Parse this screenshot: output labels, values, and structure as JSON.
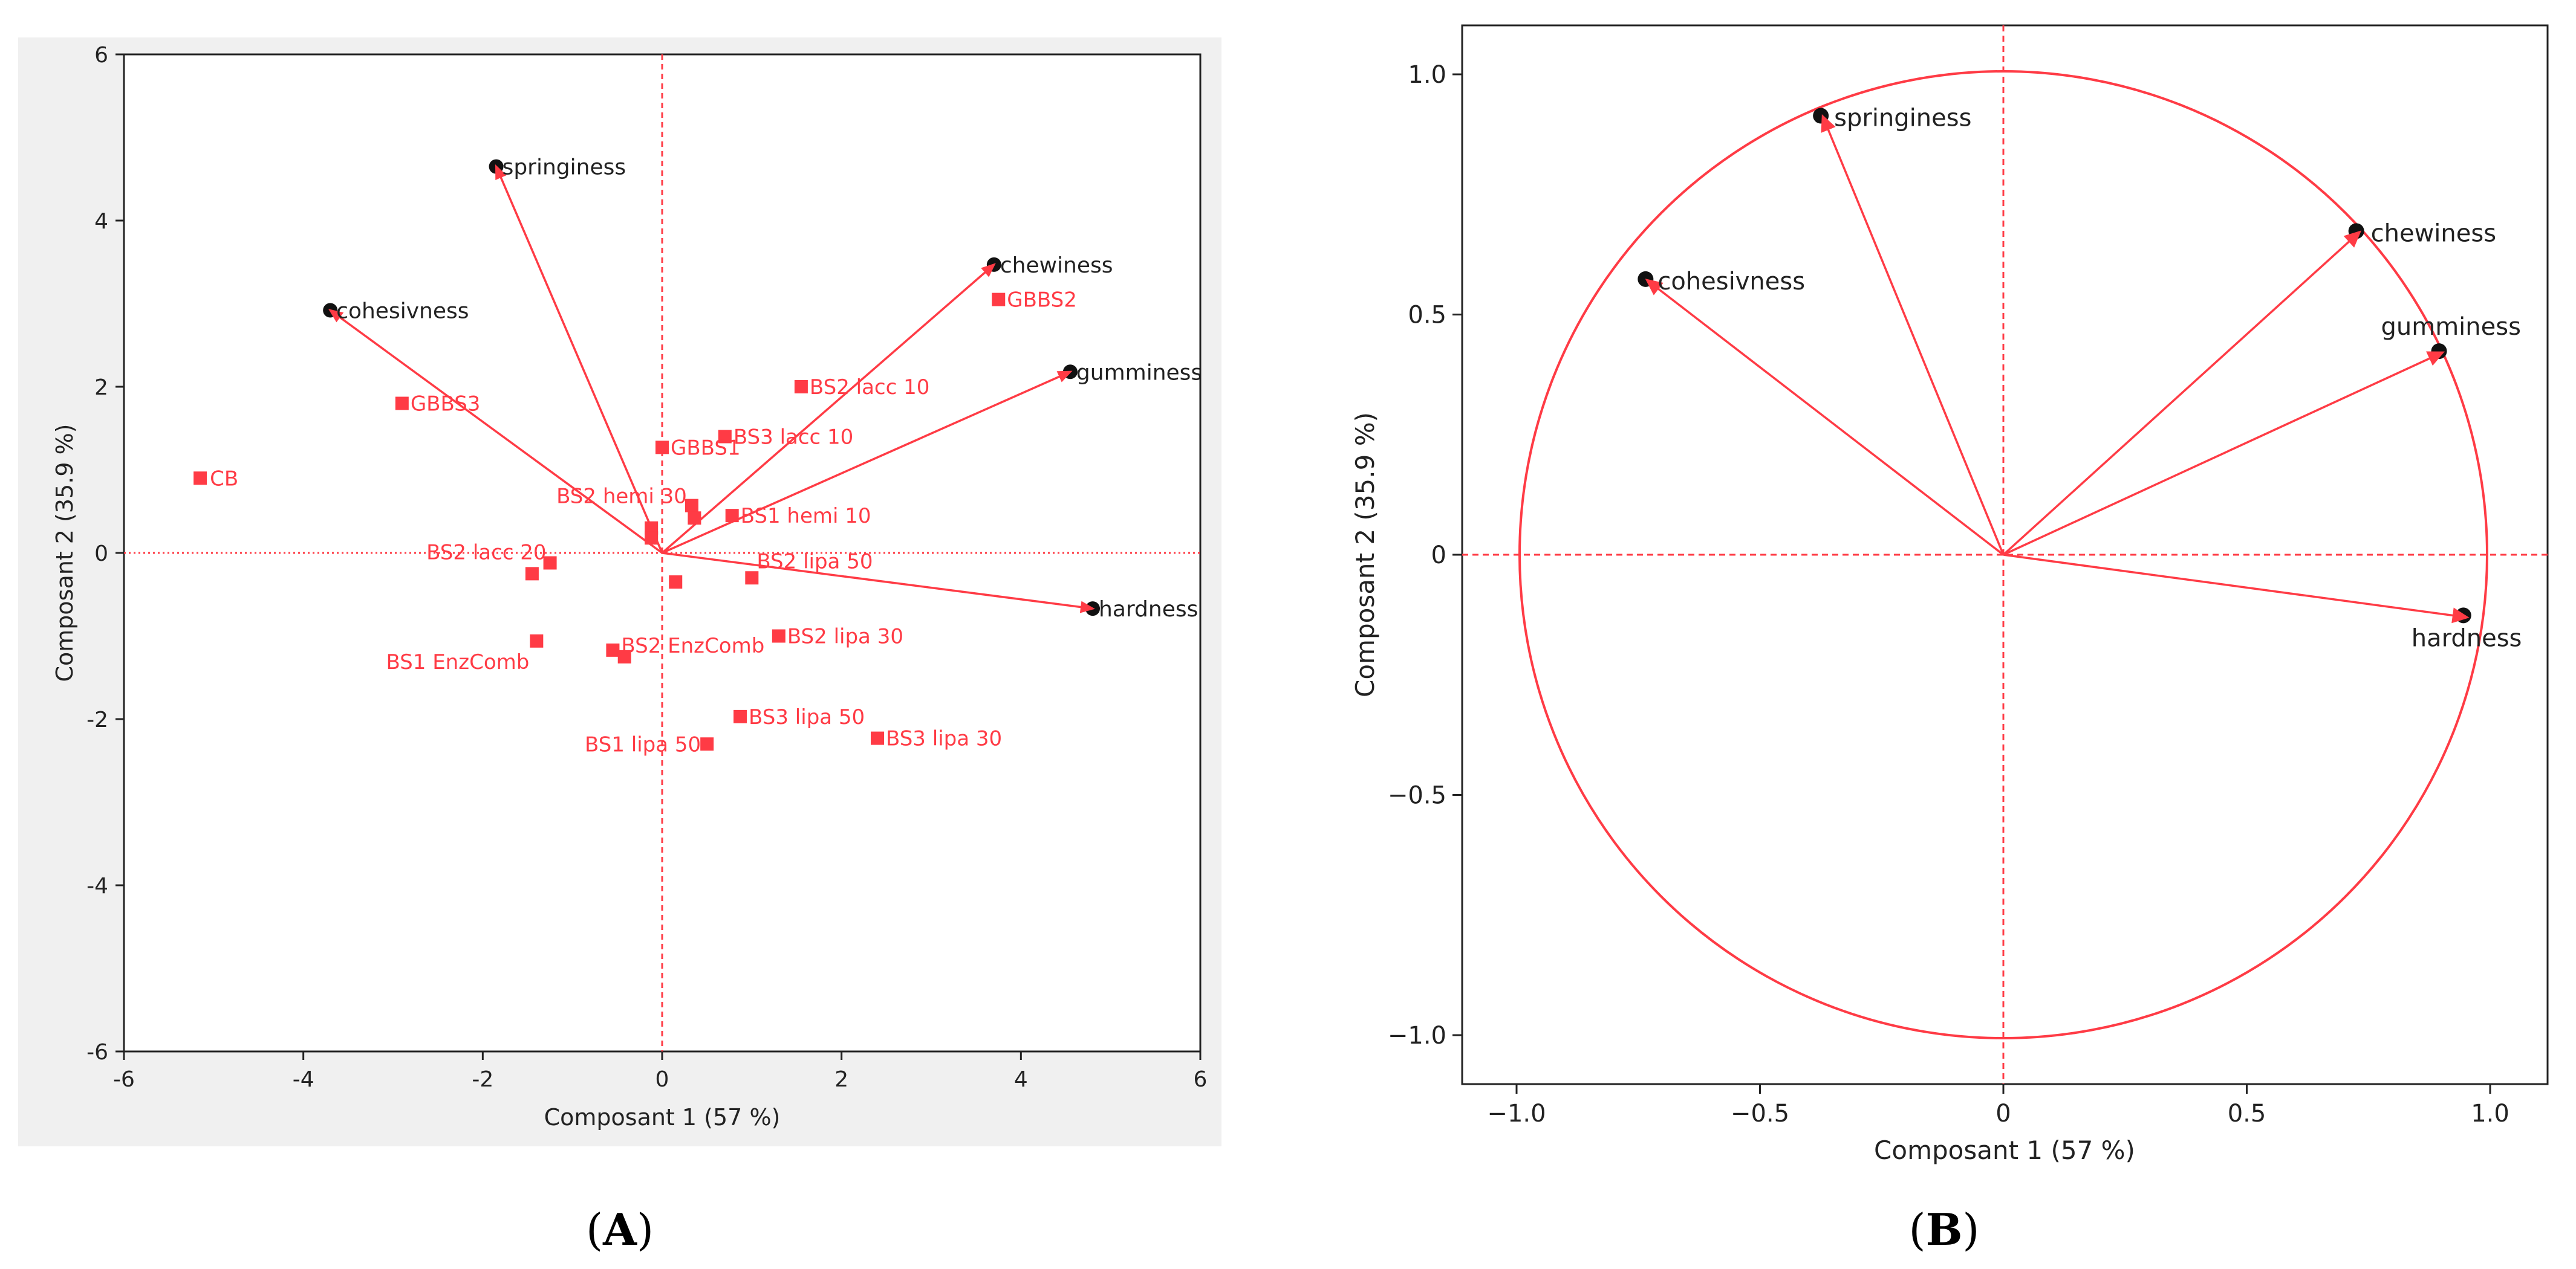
{
  "colors": {
    "accent": "#ff3b45",
    "axis": "#222222",
    "panel_bg": "#f0f0f0",
    "text_dark": "#222222",
    "point_outline": "#111111"
  },
  "panels": {
    "a": {
      "label": "A"
    },
    "b": {
      "label": "B"
    }
  },
  "chart_data": [
    {
      "panel": "A",
      "type": "scatter",
      "title": "",
      "xlabel": "Composant 1  (57 %)",
      "ylabel": "Composant 2  (35.9 %)",
      "xlim": [
        -6,
        6
      ],
      "ylim": [
        -6,
        6
      ],
      "xticks": [
        -6,
        -4,
        -2,
        0,
        2,
        4,
        6
      ],
      "yticks": [
        -6,
        -4,
        -2,
        0,
        2,
        4,
        6
      ],
      "loadings": [
        {
          "name": "springiness",
          "x": -1.85,
          "y": 4.65
        },
        {
          "name": "cohesivness",
          "x": -3.7,
          "y": 2.92
        },
        {
          "name": "chewiness",
          "x": 3.7,
          "y": 3.47
        },
        {
          "name": "gumminess",
          "x": 4.55,
          "y": 2.18
        },
        {
          "name": "hardness",
          "x": 4.8,
          "y": -0.67
        }
      ],
      "samples": [
        {
          "label": "CB",
          "x": -5.15,
          "y": 0.9
        },
        {
          "label": "GBBS3",
          "x": -2.9,
          "y": 1.8
        },
        {
          "label": "GBBS2",
          "x": 3.75,
          "y": 3.05
        },
        {
          "label": "BS2 lacc 10",
          "x": 1.55,
          "y": 2.0
        },
        {
          "label": "BS3 lacc 10",
          "x": 0.7,
          "y": 1.4
        },
        {
          "label": "GBBS1",
          "x": 0.0,
          "y": 1.27
        },
        {
          "label": "BS1 hemi 10",
          "x": 0.78,
          "y": 0.45
        },
        {
          "label": "BS2 hemi 30",
          "x": 0.33,
          "y": 0.57
        },
        {
          "label": "",
          "x": 0.36,
          "y": 0.42
        },
        {
          "label": "",
          "x": -0.12,
          "y": 0.3
        },
        {
          "label": "",
          "x": -0.12,
          "y": 0.18
        },
        {
          "label": "BS2 lipa 50",
          "x": 1.0,
          "y": -0.3
        },
        {
          "label": "",
          "x": 0.15,
          "y": -0.35
        },
        {
          "label": "BS2 lacc 20",
          "x": -1.25,
          "y": -0.12
        },
        {
          "label": "",
          "x": -1.45,
          "y": -0.25
        },
        {
          "label": "BS2 EnzComb",
          "x": -0.55,
          "y": -1.17
        },
        {
          "label": "",
          "x": -0.42,
          "y": -1.25
        },
        {
          "label": "BS1 EnzComb",
          "x": -1.4,
          "y": -1.06
        },
        {
          "label": "BS2 lipa 30",
          "x": 1.3,
          "y": -1.0
        },
        {
          "label": "BS3 lipa 50",
          "x": 0.87,
          "y": -1.97
        },
        {
          "label": "BS1 lipa 50",
          "x": 0.5,
          "y": -2.3
        },
        {
          "label": "BS3 lipa 30",
          "x": 2.4,
          "y": -2.23
        }
      ]
    },
    {
      "panel": "B",
      "type": "scatter",
      "title": "",
      "xlabel": "Composant 1  (57 %)",
      "ylabel": "Composant 2  (35.9 %)",
      "xlim": [
        -1.1,
        1.1
      ],
      "ylim": [
        -1.1,
        1.1
      ],
      "xticks": [
        -1.0,
        -0.5,
        0,
        0.5,
        1.0
      ],
      "yticks": [
        -1.0,
        -0.5,
        0,
        0.5,
        1.0
      ],
      "tick_labels": [
        "−1.0",
        "−0.5",
        "0",
        "0.5",
        "1.0"
      ],
      "unit_circle": true,
      "loadings": [
        {
          "name": "springiness",
          "x": -0.37,
          "y": 0.91
        },
        {
          "name": "cohesivness",
          "x": -0.73,
          "y": 0.57
        },
        {
          "name": "chewiness",
          "x": 0.73,
          "y": 0.67
        },
        {
          "name": "gumminess",
          "x": 0.9,
          "y": 0.42
        },
        {
          "name": "hardness",
          "x": 0.95,
          "y": -0.13
        }
      ]
    }
  ]
}
